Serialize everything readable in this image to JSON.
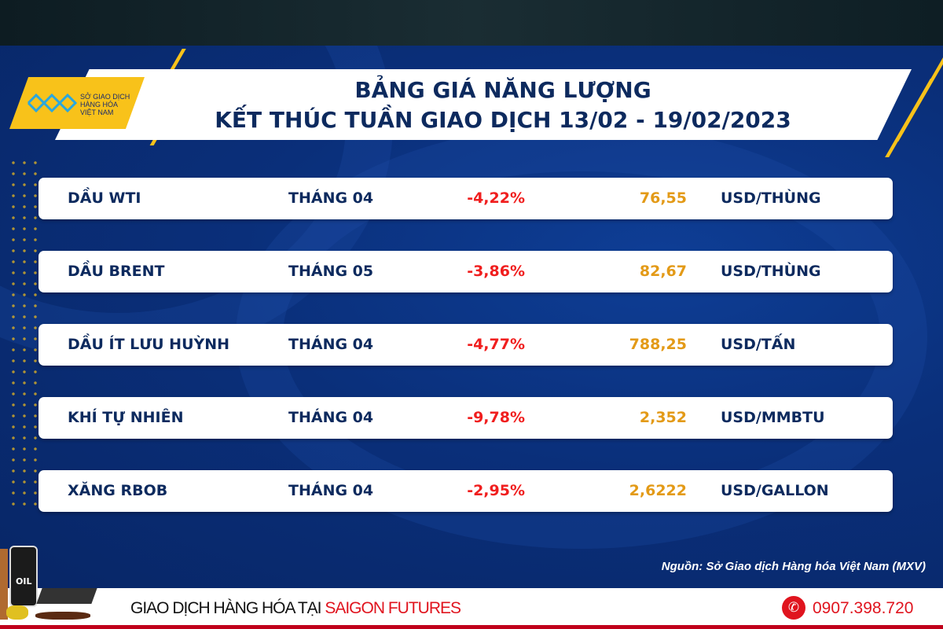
{
  "logo": {
    "text_lines": [
      "SỞ GIAO DỊCH",
      "HÀNG HÓA",
      "VIỆT NAM"
    ]
  },
  "title": {
    "line1": "BẢNG GIÁ NĂNG LƯỢNG",
    "line2": "KẾT THÚC TUẦN GIAO DỊCH 13/02 - 19/02/2023"
  },
  "rows": [
    {
      "name": "DẦU WTI",
      "month": "THÁNG 04",
      "change": "-4,22%",
      "price": "76,55",
      "unit": "USD/THÙNG"
    },
    {
      "name": "DẦU BRENT",
      "month": "THÁNG 05",
      "change": "-3,86%",
      "price": "82,67",
      "unit": "USD/THÙNG"
    },
    {
      "name": "DẦU ÍT LƯU HUỲNH",
      "month": "THÁNG 04",
      "change": "-4,77%",
      "price": "788,25",
      "unit": "USD/TẤN"
    },
    {
      "name": "KHÍ TỰ NHIÊN",
      "month": "THÁNG 04",
      "change": "-9,78%",
      "price": "2,352",
      "unit": "USD/MMBTU"
    },
    {
      "name": "XĂNG RBOB",
      "month": "THÁNG 04",
      "change": "-2,95%",
      "price": "2,6222",
      "unit": "USD/GALLON"
    }
  ],
  "source": "Nguồn: Sở Giao dịch Hàng hóa Việt Nam (MXV)",
  "footer": {
    "text": "GIAO DỊCH HÀNG HÓA TẠI ",
    "brand": "SAIGON FUTURES",
    "phone": "0907.398.720",
    "phone_icon": "phone-icon"
  },
  "products_label": "OIL",
  "colors": {
    "background": "#0a2f78",
    "accent": "#f8c21a",
    "negative": "#f01e1e",
    "price": "#e39a17",
    "text": "#0d2a5e"
  }
}
